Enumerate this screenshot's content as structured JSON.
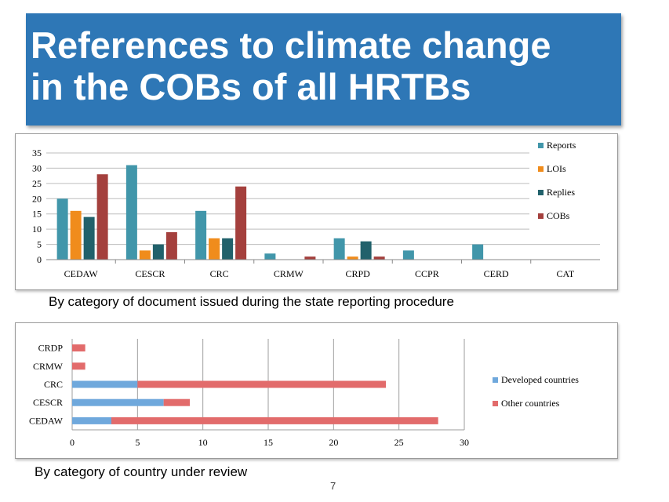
{
  "slide": {
    "title": "References to climate change\nin the COBs of all HRTBs",
    "caption_top": "By category of document issued during the state reporting procedure",
    "caption_bottom": "By category of country under review",
    "page_number": "7"
  },
  "chart_data": [
    {
      "type": "bar",
      "orientation": "vertical",
      "categories": [
        "CEDAW",
        "CESCR",
        "CRC",
        "CRMW",
        "CRPD",
        "CCPR",
        "CERD",
        "CAT"
      ],
      "series": [
        {
          "name": "Reports",
          "color": "#4196aa",
          "values": [
            20,
            31,
            16,
            2,
            7,
            3,
            5,
            0
          ]
        },
        {
          "name": "LOIs",
          "color": "#f08c1c",
          "values": [
            16,
            3,
            7,
            0,
            1,
            0,
            0,
            0
          ]
        },
        {
          "name": "Replies",
          "color": "#21616b",
          "values": [
            14,
            5,
            7,
            0,
            6,
            0,
            0,
            0
          ]
        },
        {
          "name": "COBs",
          "color": "#a4403d",
          "values": [
            28,
            9,
            24,
            1,
            1,
            0,
            0,
            0
          ]
        }
      ],
      "y_ticks": [
        "0",
        "5",
        "10",
        "15",
        "20",
        "25",
        "30",
        "35"
      ],
      "ylim": [
        0,
        35
      ],
      "grid": "horizontal",
      "legend_position": "right"
    },
    {
      "type": "bar",
      "orientation": "horizontal",
      "stacked": true,
      "categories": [
        "CEDAW",
        "CESCR",
        "CRC",
        "CRMW",
        "CRDP"
      ],
      "series": [
        {
          "name": "Developed countries",
          "color": "#6fa8dc",
          "values": [
            3,
            7,
            5,
            0,
            0
          ]
        },
        {
          "name": "Other countries",
          "color": "#e26b6b",
          "values": [
            25,
            2,
            19,
            1,
            1
          ]
        }
      ],
      "x_ticks": [
        "0",
        "5",
        "10",
        "15",
        "20",
        "25",
        "30"
      ],
      "xlim": [
        0,
        30
      ],
      "grid": "vertical",
      "legend_position": "right"
    }
  ]
}
